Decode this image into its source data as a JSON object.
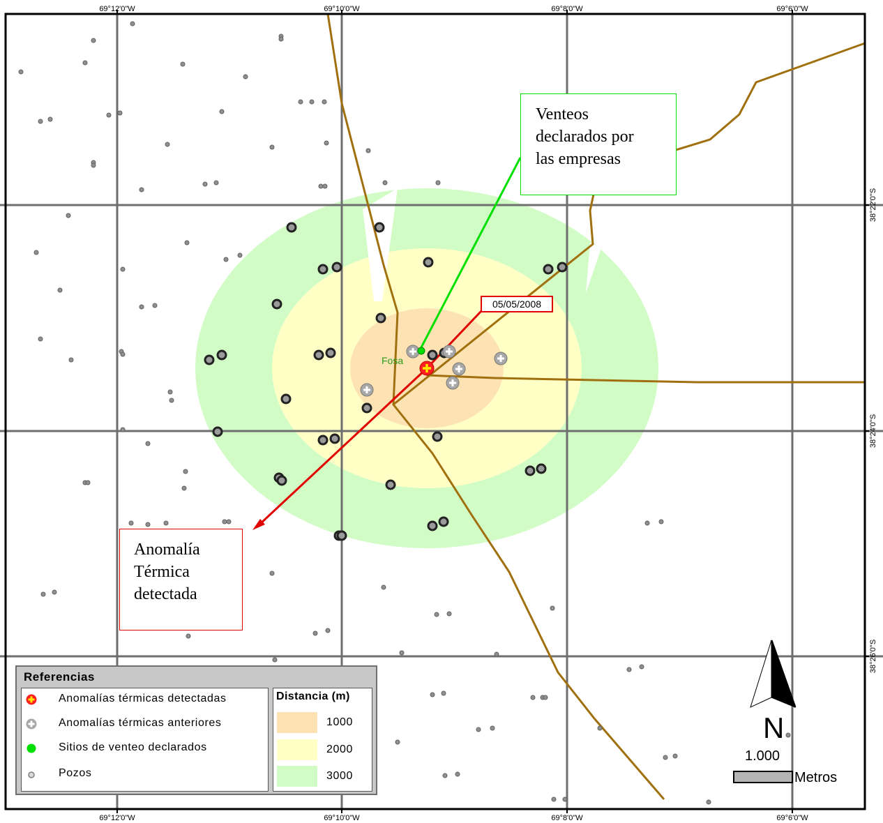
{
  "coords": {
    "top": [
      "69°12'0\"W",
      "69°10'0\"W",
      "69°8'0\"W",
      "69°6'0\"W"
    ],
    "bottom": [
      "69°12'0\"W",
      "69°10'0\"W",
      "69°8'0\"W",
      "69°6'0\"W"
    ],
    "side": [
      "38°22'0\"S",
      "38°24'0\"S",
      "38°26'0\"S"
    ]
  },
  "callouts": {
    "venteos": [
      "Venteos",
      "declarados por",
      "las empresas"
    ],
    "anomalia": [
      "Anomalía",
      "Térmica",
      "detectada"
    ]
  },
  "date_label": "05/05/2008",
  "fosa_label": "Fosa",
  "legend": {
    "title": "Referencias",
    "items": [
      {
        "label": "Anomalías térmicas detectadas",
        "icon": "red-cross-icon"
      },
      {
        "label": "Anomalías térmicas anteriores",
        "icon": "gray-cross-icon"
      },
      {
        "label": "Sitios de venteo declarados",
        "icon": "green-dot-icon"
      },
      {
        "label": "Pozos",
        "icon": "well-icon"
      }
    ],
    "distance_title": "Distancia (m)",
    "distances": [
      {
        "label": "1000",
        "color": "#fde3b3"
      },
      {
        "label": "2000",
        "color": "#ffffc6"
      },
      {
        "label": "3000",
        "color": "#d2fcc6"
      }
    ]
  },
  "north_arrow": "N",
  "scale": {
    "value": "1.000",
    "unit": "Metros"
  },
  "colors": {
    "road": "#a0700e",
    "grid": "#6e6e6e",
    "venteo_line": "#00e000",
    "anomaly_line": "#e00000"
  }
}
